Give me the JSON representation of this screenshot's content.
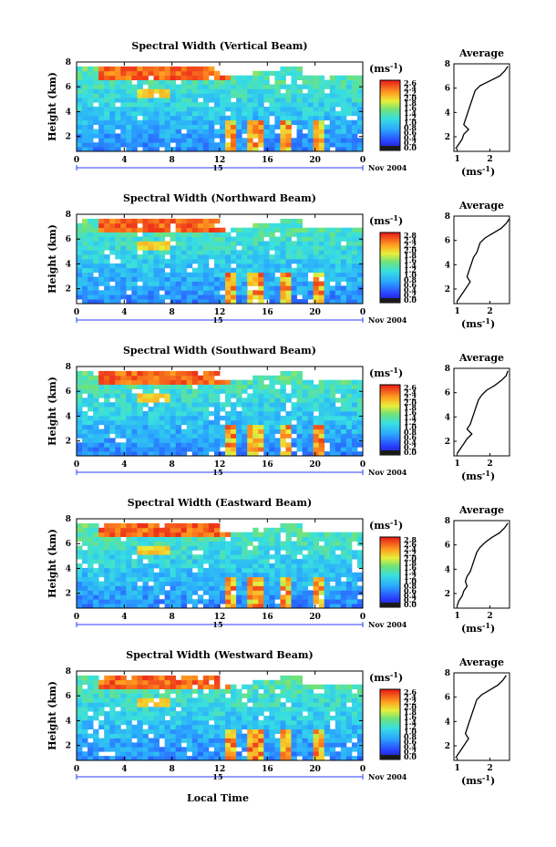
{
  "figure": {
    "x_axis_label": "Local Time",
    "date_label": "Nov 2004",
    "day_label": "15"
  },
  "chart_data": [
    {
      "type": "heatmap",
      "title": "Spectral Width (Vertical Beam)",
      "ylabel": "Height (km)",
      "x_ticks": [
        "0",
        "4",
        "8",
        "12",
        "16",
        "20",
        "0"
      ],
      "y_ticks": [
        "2",
        "4",
        "6",
        "8"
      ],
      "xlim": [
        0,
        24
      ],
      "ylim": [
        0.8,
        8
      ],
      "colorbar": {
        "unit": "(ms^-1)",
        "ticks": [
          "2.6",
          "2.4",
          "2.2",
          "2.0",
          "1.8",
          "1.6",
          "1.4",
          "1.2",
          "1.0",
          "0.8",
          "0.6",
          "0.4",
          "0.2",
          "0.0"
        ]
      },
      "average_profile": {
        "title": "Average",
        "xlabel": "(ms^-1)",
        "x_ticks": [
          "1",
          "2"
        ],
        "xlim": [
          0.9,
          2.6
        ],
        "y_ticks": [
          "2",
          "4",
          "6",
          "8"
        ],
        "ylim": [
          0.8,
          8
        ],
        "height": [
          1.0,
          1.4,
          1.8,
          2.2,
          2.6,
          3.0,
          3.4,
          3.8,
          4.2,
          4.6,
          5.0,
          5.4,
          5.8,
          6.2,
          6.6,
          7.0,
          7.4,
          7.8
        ],
        "width": [
          0.95,
          1.05,
          1.15,
          1.2,
          1.35,
          1.2,
          1.25,
          1.3,
          1.35,
          1.4,
          1.45,
          1.5,
          1.55,
          1.7,
          2.0,
          2.3,
          2.45,
          2.55
        ]
      }
    },
    {
      "type": "heatmap",
      "title": "Spectral Width (Northward Beam)",
      "ylabel": "Height (km)",
      "x_ticks": [
        "0",
        "4",
        "8",
        "12",
        "16",
        "20",
        "0"
      ],
      "y_ticks": [
        "2",
        "4",
        "6",
        "8"
      ],
      "xlim": [
        0,
        24
      ],
      "ylim": [
        0.8,
        8
      ],
      "colorbar": {
        "unit": "(ms^-1)",
        "ticks": [
          "2.8",
          "2.4",
          "2.2",
          "2.0",
          "1.8",
          "1.6",
          "1.4",
          "1.2",
          "1.0",
          "0.8",
          "0.6",
          "0.4",
          "0.2",
          "0.0"
        ]
      },
      "average_profile": {
        "title": "Average",
        "xlabel": "(ms^-1)",
        "x_ticks": [
          "1",
          "2"
        ],
        "xlim": [
          0.9,
          2.6
        ],
        "y_ticks": [
          "2",
          "4",
          "6",
          "8"
        ],
        "ylim": [
          0.8,
          8
        ],
        "height": [
          1.0,
          1.4,
          1.8,
          2.2,
          2.6,
          3.0,
          3.4,
          3.8,
          4.2,
          4.6,
          5.0,
          5.4,
          5.8,
          6.2,
          6.6,
          7.0,
          7.4,
          7.8
        ],
        "width": [
          1.0,
          1.1,
          1.2,
          1.3,
          1.4,
          1.3,
          1.35,
          1.4,
          1.45,
          1.5,
          1.6,
          1.65,
          1.7,
          1.85,
          2.1,
          2.35,
          2.5,
          2.6
        ]
      }
    },
    {
      "type": "heatmap",
      "title": "Spectral Width (Southward Beam)",
      "ylabel": "Height (km)",
      "x_ticks": [
        "0",
        "4",
        "8",
        "12",
        "16",
        "20",
        "0"
      ],
      "y_ticks": [
        "2",
        "4",
        "6",
        "8"
      ],
      "xlim": [
        0,
        24
      ],
      "ylim": [
        0.8,
        8
      ],
      "colorbar": {
        "unit": "(ms^-1)",
        "ticks": [
          "2.6",
          "2.4",
          "2.2",
          "2.0",
          "1.8",
          "1.6",
          "1.4",
          "1.2",
          "1.0",
          "0.8",
          "0.6",
          "0.4",
          "0.2",
          "0.0"
        ]
      },
      "average_profile": {
        "title": "Average",
        "xlabel": "(ms^-1)",
        "x_ticks": [
          "1",
          "2"
        ],
        "xlim": [
          0.9,
          2.6
        ],
        "y_ticks": [
          "2",
          "4",
          "6",
          "8"
        ],
        "ylim": [
          0.8,
          8
        ],
        "height": [
          1.0,
          1.4,
          1.8,
          2.2,
          2.6,
          3.0,
          3.4,
          3.8,
          4.2,
          4.6,
          5.0,
          5.4,
          5.8,
          6.2,
          6.6,
          7.0,
          7.4,
          7.8
        ],
        "width": [
          1.0,
          1.1,
          1.2,
          1.3,
          1.45,
          1.3,
          1.4,
          1.45,
          1.5,
          1.55,
          1.6,
          1.65,
          1.75,
          1.9,
          2.15,
          2.35,
          2.5,
          2.55
        ]
      }
    },
    {
      "type": "heatmap",
      "title": "Spectral Width (Eastward Beam)",
      "ylabel": "Height (km)",
      "x_ticks": [
        "0",
        "4",
        "8",
        "12",
        "16",
        "20",
        "0"
      ],
      "y_ticks": [
        "2",
        "4",
        "6",
        "8"
      ],
      "xlim": [
        0,
        24
      ],
      "ylim": [
        0.8,
        8
      ],
      "colorbar": {
        "unit": "(ms^-1)",
        "ticks": [
          "2.8",
          "2.6",
          "2.4",
          "2.2",
          "2.0",
          "1.8",
          "1.6",
          "1.4",
          "1.2",
          "1.0",
          "0.8",
          "0.6",
          "0.4",
          "0.2",
          "0.0"
        ]
      },
      "average_profile": {
        "title": "Average",
        "xlabel": "(ms^-1)",
        "x_ticks": [
          "1",
          "2"
        ],
        "xlim": [
          0.9,
          2.6
        ],
        "y_ticks": [
          "2",
          "4",
          "6",
          "8"
        ],
        "ylim": [
          0.8,
          8
        ],
        "height": [
          1.0,
          1.4,
          1.8,
          2.2,
          2.6,
          3.0,
          3.4,
          3.8,
          4.2,
          4.6,
          5.0,
          5.4,
          5.8,
          6.2,
          6.6,
          7.0,
          7.4,
          7.8
        ],
        "width": [
          1.0,
          1.05,
          1.15,
          1.2,
          1.3,
          1.25,
          1.3,
          1.4,
          1.45,
          1.5,
          1.55,
          1.6,
          1.7,
          1.85,
          2.05,
          2.3,
          2.45,
          2.55
        ]
      }
    },
    {
      "type": "heatmap",
      "title": "Spectral Width (Westward Beam)",
      "ylabel": "Height (km)",
      "x_ticks": [
        "0",
        "4",
        "8",
        "12",
        "16",
        "20",
        "0"
      ],
      "y_ticks": [
        "2",
        "4",
        "6",
        "8"
      ],
      "xlim": [
        0,
        24
      ],
      "ylim": [
        0.8,
        8
      ],
      "colorbar": {
        "unit": "(ms^-1)",
        "ticks": [
          "2.6",
          "2.4",
          "2.2",
          "2.0",
          "1.8",
          "1.6",
          "1.4",
          "1.2",
          "1.0",
          "0.8",
          "0.6",
          "0.4",
          "0.2",
          "0.0"
        ]
      },
      "average_profile": {
        "title": "Average",
        "xlabel": "(ms^-1)",
        "x_ticks": [
          "1",
          "2"
        ],
        "xlim": [
          0.9,
          2.6
        ],
        "y_ticks": [
          "2",
          "4",
          "6",
          "8"
        ],
        "ylim": [
          0.8,
          8
        ],
        "height": [
          1.0,
          1.4,
          1.8,
          2.2,
          2.6,
          3.0,
          3.4,
          3.8,
          4.2,
          4.6,
          5.0,
          5.4,
          5.8,
          6.2,
          6.6,
          7.0,
          7.4,
          7.8
        ],
        "width": [
          0.95,
          1.05,
          1.15,
          1.25,
          1.35,
          1.25,
          1.3,
          1.35,
          1.4,
          1.45,
          1.5,
          1.55,
          1.6,
          1.75,
          2.0,
          2.25,
          2.4,
          2.5
        ]
      }
    }
  ]
}
